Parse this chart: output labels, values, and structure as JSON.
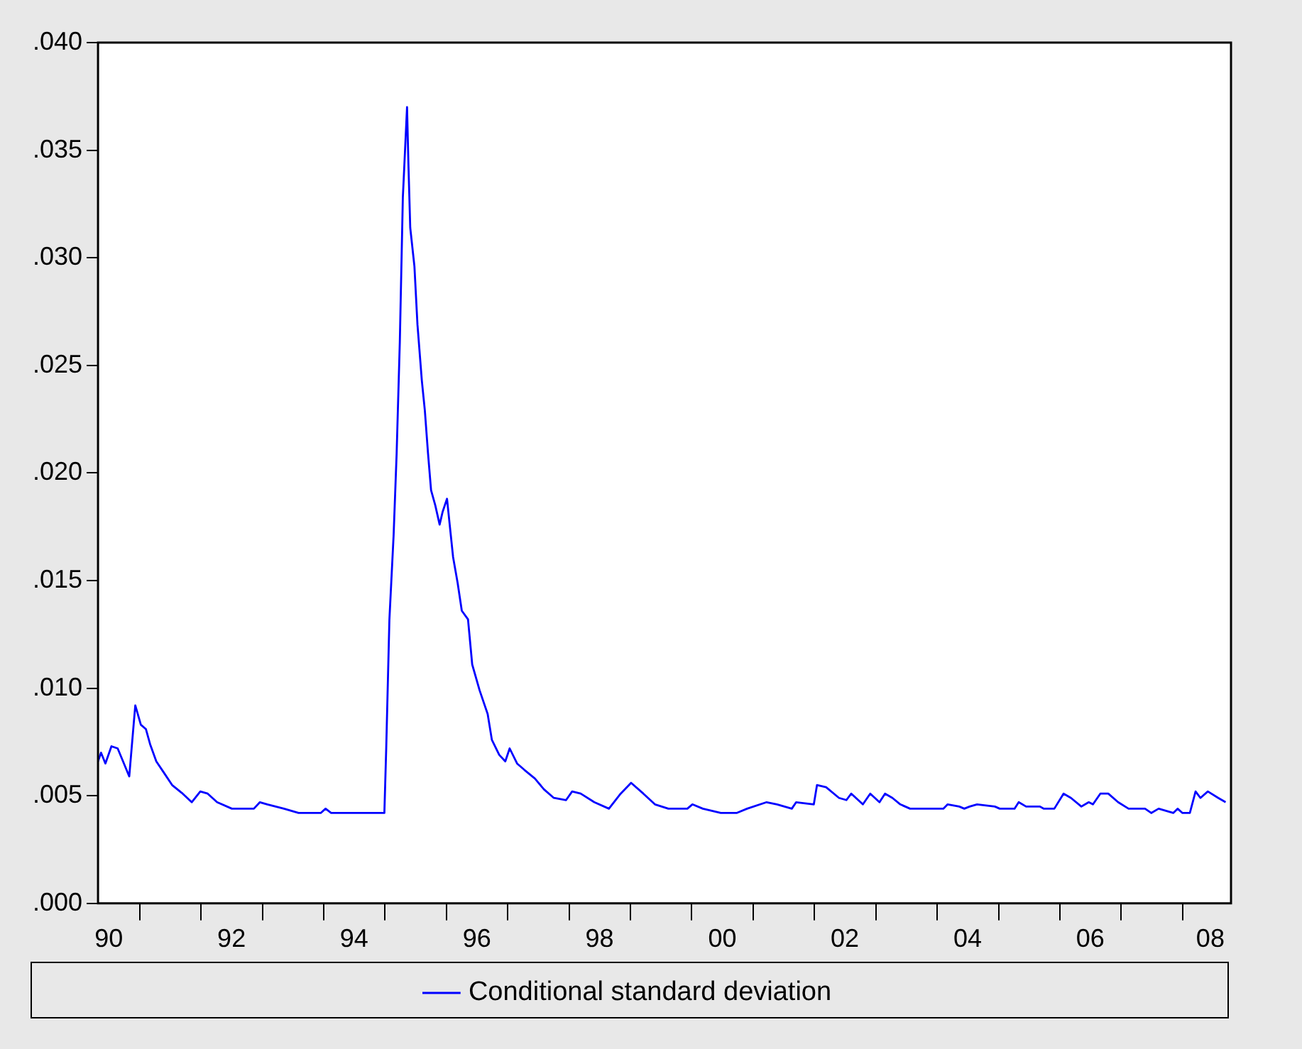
{
  "chart_data": {
    "type": "line",
    "legend": "bottom",
    "grid": false,
    "marker": "none",
    "line_style": "solid",
    "xlim": [
      "1990-04-28",
      "2008-10-16"
    ],
    "xticks": [
      {
        "value": "1990-07-01",
        "label": "90"
      },
      {
        "value": "1991-01-01",
        "label": null
      },
      {
        "value": "1992-01-01",
        "label": null
      },
      {
        "value": "1992-07-01",
        "label": "92"
      },
      {
        "value": "1993-01-01",
        "label": null
      },
      {
        "value": "1994-01-01",
        "label": null
      },
      {
        "value": "1994-07-01",
        "label": "94"
      },
      {
        "value": "1995-01-01",
        "label": null
      },
      {
        "value": "1996-01-01",
        "label": null
      },
      {
        "value": "1996-07-01",
        "label": "96"
      },
      {
        "value": "1997-01-01",
        "label": null
      },
      {
        "value": "1998-01-01",
        "label": null
      },
      {
        "value": "1998-07-01",
        "label": "98"
      },
      {
        "value": "1999-01-01",
        "label": null
      },
      {
        "value": "2000-01-01",
        "label": null
      },
      {
        "value": "2000-07-01",
        "label": "00"
      },
      {
        "value": "2001-01-01",
        "label": null
      },
      {
        "value": "2002-01-01",
        "label": null
      },
      {
        "value": "2002-07-01",
        "label": "02"
      },
      {
        "value": "2003-01-01",
        "label": null
      },
      {
        "value": "2004-01-01",
        "label": null
      },
      {
        "value": "2004-07-01",
        "label": "04"
      },
      {
        "value": "2005-01-01",
        "label": null
      },
      {
        "value": "2006-01-01",
        "label": null
      },
      {
        "value": "2006-07-01",
        "label": "06"
      },
      {
        "value": "2007-01-01",
        "label": null
      },
      {
        "value": "2008-01-01",
        "label": null
      },
      {
        "value": "2008-06-15",
        "label": "08"
      }
    ],
    "ylim": [
      0,
      0.04
    ],
    "yticks": [
      {
        "value": 0,
        "label": ".000"
      },
      {
        "value": 0.005,
        "label": ".005"
      },
      {
        "value": 0.01,
        "label": ".010"
      },
      {
        "value": 0.015,
        "label": ".015"
      },
      {
        "value": 0.02,
        "label": ".020"
      },
      {
        "value": 0.025,
        "label": ".025"
      },
      {
        "value": 0.03,
        "label": ".030"
      },
      {
        "value": 0.035,
        "label": ".035"
      },
      {
        "value": 0.04,
        "label": ".040"
      }
    ],
    "series": [
      {
        "name": "Conditional standard deviation",
        "color": "#0000ff",
        "x": [
          "1990-04-28",
          "1990-05-16",
          "1990-06-11",
          "1990-07-17",
          "1990-08-23",
          "1990-09-24",
          "1990-10-31",
          "1990-11-26",
          "1990-12-06",
          "1991-01-08",
          "1991-02-07",
          "1991-03-04",
          "1991-04-10",
          "1991-05-23",
          "1991-07-13",
          "1991-09-14",
          "1991-11-07",
          "1991-12-28",
          "1992-02-10",
          "1992-04-06",
          "1992-07-03",
          "1992-11-11",
          "1992-12-17",
          "1993-01-30",
          "1993-05-09",
          "1993-08-04",
          "1993-12-14",
          "1994-01-12",
          "1994-02-14",
          "1994-12-28",
          "1995-01-08",
          "1995-01-27",
          "1995-02-21",
          "1995-03-11",
          "1995-03-30",
          "1995-04-17",
          "1995-05-12",
          "1995-05-20",
          "1995-05-31",
          "1995-06-25",
          "1995-07-13",
          "1995-08-08",
          "1995-08-26",
          "1995-09-14",
          "1995-10-02",
          "1995-10-27",
          "1995-11-22",
          "1995-12-10",
          "1996-01-05",
          "1996-02-10",
          "1996-03-08",
          "1996-04-02",
          "1996-05-09",
          "1996-06-03",
          "1996-07-17",
          "1996-09-03",
          "1996-09-28",
          "1996-11-11",
          "1996-12-17",
          "1997-01-12",
          "1997-02-25",
          "1997-04-10",
          "1997-06-11",
          "1997-08-04",
          "1997-10-02",
          "1997-12-14",
          "1998-01-19",
          "1998-03-11",
          "1998-05-31",
          "1998-08-26",
          "1998-11-04",
          "1999-01-05",
          "1999-03-19",
          "1999-05-27",
          "1999-08-15",
          "1999-12-06",
          "2000-01-05",
          "2000-03-07",
          "2000-06-22",
          "2000-09-24",
          "2000-11-26",
          "2001-03-22",
          "2001-05-23",
          "2001-08-19",
          "2001-09-14",
          "2001-12-28",
          "2002-01-16",
          "2002-03-11",
          "2002-05-27",
          "2002-07-10",
          "2002-08-08",
          "2002-10-16",
          "2002-11-29",
          "2003-01-23",
          "2003-02-25",
          "2003-04-10",
          "2003-05-27",
          "2003-07-24",
          "2004-02-07",
          "2004-03-04",
          "2004-05-12",
          "2004-06-11",
          "2004-07-13",
          "2004-08-26",
          "2004-12-10",
          "2005-01-08",
          "2005-04-06",
          "2005-05-01",
          "2005-06-14",
          "2005-09-03",
          "2005-09-28",
          "2005-11-29",
          "2006-01-23",
          "2006-03-08",
          "2006-05-09",
          "2006-06-22",
          "2006-07-17",
          "2006-08-30",
          "2006-10-16",
          "2006-12-14",
          "2007-02-14",
          "2007-05-23",
          "2007-06-29",
          "2007-08-12",
          "2007-11-07",
          "2007-12-03",
          "2008-01-01",
          "2008-02-14",
          "2008-03-19",
          "2008-04-17",
          "2008-05-31",
          "2008-08-01",
          "2008-09-14"
        ],
        "values": [
          0.0066,
          0.007,
          0.0065,
          0.0073,
          0.0072,
          0.0066,
          0.0059,
          0.0083,
          0.0092,
          0.0083,
          0.0081,
          0.0074,
          0.0066,
          0.0061,
          0.0055,
          0.0051,
          0.0047,
          0.0052,
          0.0051,
          0.0047,
          0.0044,
          0.0044,
          0.0047,
          0.0046,
          0.0044,
          0.0042,
          0.0042,
          0.0044,
          0.0042,
          0.0042,
          0.0072,
          0.0132,
          0.0171,
          0.0209,
          0.0261,
          0.0328,
          0.037,
          0.0344,
          0.0314,
          0.0296,
          0.0269,
          0.0243,
          0.0229,
          0.0209,
          0.0192,
          0.0185,
          0.0176,
          0.0182,
          0.0188,
          0.0161,
          0.0149,
          0.0136,
          0.0132,
          0.0111,
          0.0099,
          0.0088,
          0.0076,
          0.0069,
          0.0066,
          0.0072,
          0.0065,
          0.0062,
          0.0058,
          0.0053,
          0.0049,
          0.0048,
          0.0052,
          0.0051,
          0.0047,
          0.0044,
          0.0051,
          0.0056,
          0.0051,
          0.0046,
          0.0044,
          0.0044,
          0.0046,
          0.0044,
          0.0042,
          0.0042,
          0.0044,
          0.0047,
          0.0046,
          0.0044,
          0.0047,
          0.0046,
          0.0055,
          0.0054,
          0.0049,
          0.0048,
          0.0051,
          0.0046,
          0.0051,
          0.0047,
          0.0051,
          0.0049,
          0.0046,
          0.0044,
          0.0044,
          0.0046,
          0.0045,
          0.0044,
          0.0045,
          0.0046,
          0.0045,
          0.0044,
          0.0044,
          0.0047,
          0.0045,
          0.0045,
          0.0044,
          0.0044,
          0.0051,
          0.0049,
          0.0045,
          0.0047,
          0.0046,
          0.0051,
          0.0051,
          0.0047,
          0.0044,
          0.0044,
          0.0042,
          0.0044,
          0.0042,
          0.0044,
          0.0042,
          0.0042,
          0.0052,
          0.0049,
          0.0052,
          0.0049,
          0.0047
        ]
      }
    ]
  }
}
